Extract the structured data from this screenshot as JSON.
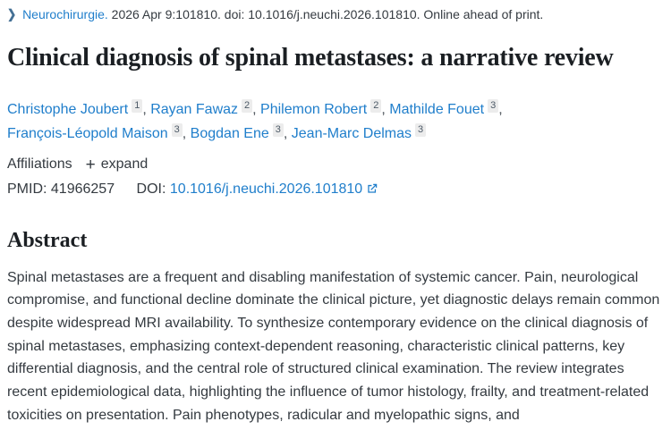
{
  "colors": {
    "link_blue": "#1f7ecb",
    "body_text": "#343a40",
    "heading_text": "#1b1f23",
    "superscript_bg": "#ececec"
  },
  "citation": {
    "chevron_icon": "❯",
    "journal": "Neurochirurgie.",
    "details": "2026 Apr 9:101810. doi: 10.1016/j.neuchi.2026.101810. Online ahead of print."
  },
  "title": "Clinical diagnosis of spinal metastases: a narrative review",
  "authors": {
    "separator": ", ",
    "list": [
      {
        "name": "Christophe Joubert",
        "sup": "1"
      },
      {
        "name": "Rayan Fawaz",
        "sup": "2"
      },
      {
        "name": "Philemon Robert",
        "sup": "2"
      },
      {
        "name": "Mathilde Fouet",
        "sup": "3"
      },
      {
        "name": "François-Léopold Maison",
        "sup": "3"
      },
      {
        "name": "Bogdan Ene",
        "sup": "3"
      },
      {
        "name": "Jean-Marc Delmas",
        "sup": "3"
      }
    ]
  },
  "affiliations": {
    "label": "Affiliations",
    "plus": "+",
    "expand": "expand"
  },
  "identifiers": {
    "pmid_label": "PMID:",
    "pmid": "41966257",
    "doi_label": "DOI:",
    "doi": "10.1016/j.neuchi.2026.101810"
  },
  "abstract": {
    "heading": "Abstract",
    "text": "Spinal metastases are a frequent and disabling manifestation of systemic cancer. Pain, neurological compromise, and functional decline dominate the clinical picture, yet diagnostic delays remain common despite widespread MRI availability. To synthesize contemporary evidence on the clinical diagnosis of spinal metastases, emphasizing context-dependent reasoning, characteristic clinical patterns, key differential diagnosis, and the central role of structured clinical examination. The review integrates recent epidemiological data, highlighting the influence of tumor histology, frailty, and treatment-related toxicities on presentation. Pain phenotypes, radicular and myelopathic signs, and"
  }
}
